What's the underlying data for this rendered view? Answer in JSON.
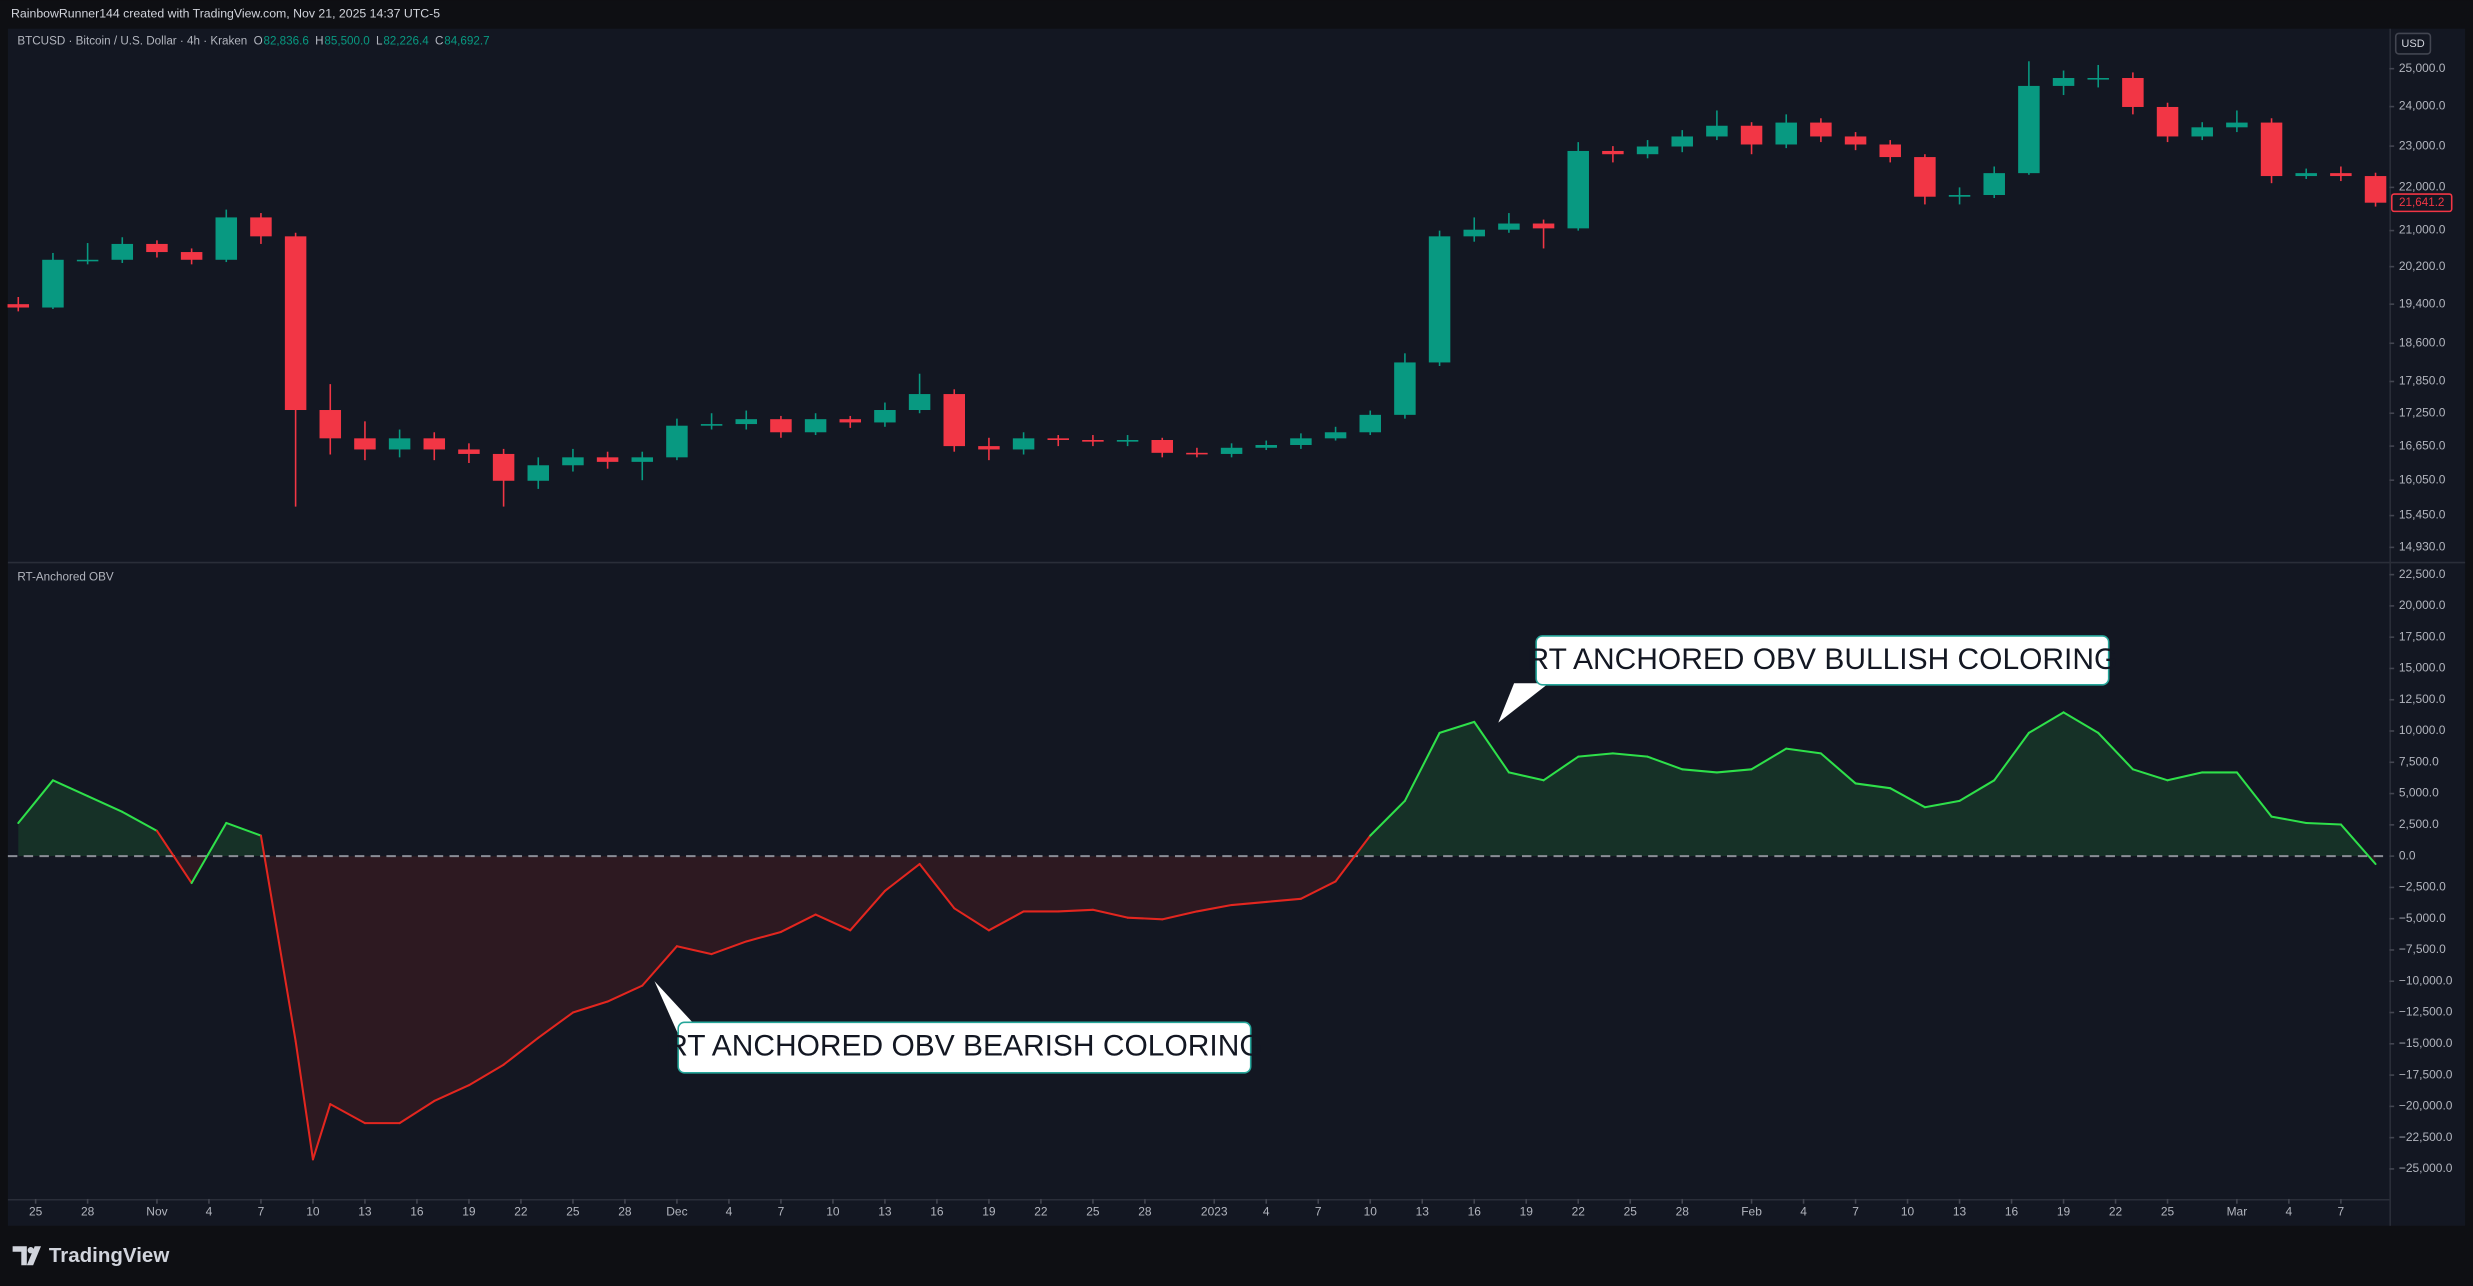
{
  "header": {
    "attribution": "RainbowRunner144 created with TradingView.com, Nov 21, 2025 14:37 UTC-5"
  },
  "currency_button": "USD",
  "footer": {
    "logo": "TradingView"
  },
  "chart_data": [
    {
      "type": "candlestick",
      "title": "BTCUSD · Bitcoin / U.S. Dollar · 4h · Kraken",
      "ohlc_legend": [
        {
          "key": "O",
          "value": "82,836.6"
        },
        {
          "key": "H",
          "value": "85,500.0"
        },
        {
          "key": "L",
          "value": "82,226.4"
        },
        {
          "key": "C",
          "value": "84,692.7"
        }
      ],
      "x": [
        -1,
        1,
        3,
        5,
        7,
        9,
        11,
        13,
        15,
        17,
        19,
        21,
        23,
        25,
        27,
        29,
        31,
        33,
        35,
        37,
        39,
        41,
        43,
        45,
        47,
        49,
        51,
        53,
        55,
        57,
        59,
        61,
        63,
        65,
        67,
        69,
        71,
        73,
        75,
        77,
        79,
        81,
        83,
        85,
        87,
        89,
        91,
        93,
        95,
        97,
        99,
        101,
        103,
        105,
        107,
        109,
        111,
        113,
        115,
        117,
        119,
        121,
        123,
        125,
        127,
        129,
        131,
        133,
        135
      ],
      "ohlc": [
        [
          19400,
          19550,
          19250,
          19330
        ],
        [
          19330,
          20500,
          19300,
          20350
        ],
        [
          20350,
          20720,
          20250,
          20350
        ],
        [
          20350,
          20850,
          20280,
          20700
        ],
        [
          20700,
          20780,
          20400,
          20520
        ],
        [
          20520,
          20600,
          20250,
          20350
        ],
        [
          20350,
          21480,
          20300,
          21300
        ],
        [
          21300,
          21400,
          20700,
          20870
        ],
        [
          20870,
          20950,
          15600,
          17310
        ],
        [
          17310,
          17800,
          16500,
          16790
        ],
        [
          16790,
          17100,
          16400,
          16590
        ],
        [
          16590,
          16950,
          16450,
          16790
        ],
        [
          16790,
          16900,
          16400,
          16590
        ],
        [
          16590,
          16700,
          16350,
          16510
        ],
        [
          16510,
          16600,
          15600,
          16040
        ],
        [
          16040,
          16450,
          15900,
          16310
        ],
        [
          16310,
          16600,
          16200,
          16450
        ],
        [
          16450,
          16550,
          16250,
          16370
        ],
        [
          16370,
          16550,
          16050,
          16450
        ],
        [
          16450,
          17150,
          16400,
          17020
        ],
        [
          17020,
          17250,
          16950,
          17050
        ],
        [
          17050,
          17300,
          16950,
          17140
        ],
        [
          17140,
          17200,
          16800,
          16900
        ],
        [
          16900,
          17250,
          16850,
          17140
        ],
        [
          17140,
          17200,
          16980,
          17080
        ],
        [
          17080,
          17450,
          17000,
          17310
        ],
        [
          17310,
          18000,
          17250,
          17610
        ],
        [
          17610,
          17700,
          16550,
          16650
        ],
        [
          16650,
          16800,
          16400,
          16590
        ],
        [
          16590,
          16900,
          16500,
          16790
        ],
        [
          16790,
          16850,
          16650,
          16760
        ],
        [
          16760,
          16850,
          16650,
          16730
        ],
        [
          16730,
          16850,
          16650,
          16760
        ],
        [
          16760,
          16800,
          16450,
          16530
        ],
        [
          16530,
          16620,
          16450,
          16510
        ],
        [
          16510,
          16700,
          16450,
          16620
        ],
        [
          16620,
          16750,
          16580,
          16670
        ],
        [
          16670,
          16880,
          16600,
          16790
        ],
        [
          16790,
          17000,
          16750,
          16900
        ],
        [
          16900,
          17300,
          16850,
          17220
        ],
        [
          17220,
          18400,
          17150,
          18220
        ],
        [
          18220,
          21000,
          18150,
          20870
        ],
        [
          20870,
          21300,
          20750,
          21020
        ],
        [
          21020,
          21400,
          20950,
          21160
        ],
        [
          21160,
          21250,
          20600,
          21050
        ],
        [
          21050,
          23100,
          21000,
          22880
        ],
        [
          22880,
          23000,
          22600,
          22800
        ],
        [
          22800,
          23150,
          22700,
          22990
        ],
        [
          22990,
          23400,
          22850,
          23240
        ],
        [
          23240,
          23900,
          23150,
          23510
        ],
        [
          23510,
          23600,
          22800,
          23040
        ],
        [
          23040,
          23800,
          22950,
          23590
        ],
        [
          23590,
          23700,
          23100,
          23240
        ],
        [
          23240,
          23350,
          22900,
          23040
        ],
        [
          23040,
          23150,
          22600,
          22730
        ],
        [
          22730,
          22800,
          21600,
          21780
        ],
        [
          21780,
          22000,
          21600,
          21820
        ],
        [
          21820,
          22500,
          21750,
          22340
        ],
        [
          22340,
          25200,
          22300,
          24540
        ],
        [
          24540,
          24950,
          24300,
          24750
        ],
        [
          24750,
          25100,
          24500,
          24750
        ],
        [
          24750,
          24900,
          23800,
          23990
        ],
        [
          23990,
          24100,
          23100,
          23240
        ],
        [
          23240,
          23600,
          23150,
          23470
        ],
        [
          23470,
          23900,
          23350,
          23590
        ],
        [
          23590,
          23700,
          22100,
          22270
        ],
        [
          22270,
          22450,
          22200,
          22340
        ],
        [
          22340,
          22500,
          22150,
          22270
        ],
        [
          22270,
          22350,
          21550,
          21640
        ]
      ],
      "up_color": "#089981",
      "down_color": "#f23645",
      "xlim": [
        -1.6,
        135.8
      ],
      "ylim": [
        14700,
        26100
      ],
      "log_scale": true,
      "grid": false,
      "yticks": [
        {
          "value": 25000,
          "label": "25,000.0"
        },
        {
          "value": 24000,
          "label": "24,000.0"
        },
        {
          "value": 23000,
          "label": "23,000.0"
        },
        {
          "value": 22000,
          "label": "22,000.0"
        },
        {
          "value": 21000,
          "label": "21,000.0"
        },
        {
          "value": 20200,
          "label": "20,200.0"
        },
        {
          "value": 19400,
          "label": "19,400.0"
        },
        {
          "value": 18600,
          "label": "18,600.0"
        },
        {
          "value": 17850,
          "label": "17,850.0"
        },
        {
          "value": 17250,
          "label": "17,250.0"
        },
        {
          "value": 16650,
          "label": "16,650.0"
        },
        {
          "value": 16050,
          "label": "16,050.0"
        },
        {
          "value": 15450,
          "label": "15,450.0"
        },
        {
          "value": 14930,
          "label": "14,930.0"
        }
      ],
      "last_price_label": "21,641.2"
    },
    {
      "type": "line",
      "title": "RT-Anchored OBV",
      "x": [
        -1,
        1,
        3,
        5,
        7,
        9,
        11,
        13,
        15,
        16,
        17,
        19,
        21,
        23,
        25,
        27,
        29,
        31,
        33,
        35,
        37,
        39,
        41,
        43,
        45,
        47,
        49,
        51,
        53,
        55,
        57,
        59,
        61,
        63,
        65,
        67,
        69,
        71,
        73,
        75,
        77,
        79,
        81,
        83,
        85,
        87,
        89,
        91,
        93,
        95,
        97,
        99,
        101,
        103,
        105,
        107,
        109,
        111,
        113,
        115,
        117,
        119,
        121,
        123,
        125,
        127,
        129,
        131,
        133,
        135
      ],
      "values": [
        2650,
        6060,
        4800,
        3540,
        2020,
        -2150,
        2650,
        1640,
        -14770,
        -24240,
        -19820,
        -21340,
        -21340,
        -19570,
        -18310,
        -16670,
        -14520,
        -12500,
        -11620,
        -10350,
        -7200,
        -7830,
        -6820,
        -6060,
        -4670,
        -5930,
        -2780,
        -630,
        -4170,
        -5930,
        -4420,
        -4420,
        -4290,
        -4920,
        -5050,
        -4420,
        -3910,
        -3660,
        -3410,
        -2020,
        1640,
        4420,
        9850,
        10730,
        6690,
        6060,
        7950,
        8210,
        7950,
        6940,
        6690,
        6940,
        8590,
        8210,
        5810,
        5430,
        3910,
        4420,
        6060,
        9850,
        11490,
        9850,
        6940,
        6060,
        6690,
        6690,
        3160,
        2650,
        2530,
        -630
      ],
      "bullish_color": "#2ee04a",
      "bearish_color": "#e3261f",
      "bullish_fill": "rgba(46,224,74,0.13)",
      "bearish_fill": "rgba(227,38,31,0.13)",
      "zero_line": true,
      "grid": false,
      "xlim": [
        -1.6,
        135.8
      ],
      "ylim": [
        -27400,
        23400
      ],
      "yticks": [
        {
          "value": 22500,
          "label": "22,500.0"
        },
        {
          "value": 20000,
          "label": "20,000.0"
        },
        {
          "value": 17500,
          "label": "17,500.0"
        },
        {
          "value": 15000,
          "label": "15,000.0"
        },
        {
          "value": 12500,
          "label": "12,500.0"
        },
        {
          "value": 10000,
          "label": "10,000.0"
        },
        {
          "value": 7500,
          "label": "7,500.0"
        },
        {
          "value": 5000,
          "label": "5,000.0"
        },
        {
          "value": 2500,
          "label": "2,500.0"
        },
        {
          "value": 0,
          "label": "0.0"
        },
        {
          "value": -2500,
          "label": "−2,500.0"
        },
        {
          "value": -5000,
          "label": "−5,000.0"
        },
        {
          "value": -7500,
          "label": "−7,500.0"
        },
        {
          "value": -10000,
          "label": "−10,000.0"
        },
        {
          "value": -12500,
          "label": "−12,500.0"
        },
        {
          "value": -15000,
          "label": "−15,000.0"
        },
        {
          "value": -17500,
          "label": "−17,500.0"
        },
        {
          "value": -20000,
          "label": "−20,000.0"
        },
        {
          "value": -22500,
          "label": "−22,500.0"
        },
        {
          "value": -25000,
          "label": "−25,000.0"
        }
      ],
      "xticks": [
        {
          "value": 0,
          "label": "25"
        },
        {
          "value": 3,
          "label": "28"
        },
        {
          "value": 7,
          "label": "Nov"
        },
        {
          "value": 10,
          "label": "4"
        },
        {
          "value": 13,
          "label": "7"
        },
        {
          "value": 16,
          "label": "10"
        },
        {
          "value": 19,
          "label": "13"
        },
        {
          "value": 22,
          "label": "16"
        },
        {
          "value": 25,
          "label": "19"
        },
        {
          "value": 28,
          "label": "22"
        },
        {
          "value": 31,
          "label": "25"
        },
        {
          "value": 34,
          "label": "28"
        },
        {
          "value": 37,
          "label": "Dec"
        },
        {
          "value": 40,
          "label": "4"
        },
        {
          "value": 43,
          "label": "7"
        },
        {
          "value": 46,
          "label": "10"
        },
        {
          "value": 49,
          "label": "13"
        },
        {
          "value": 52,
          "label": "16"
        },
        {
          "value": 55,
          "label": "19"
        },
        {
          "value": 58,
          "label": "22"
        },
        {
          "value": 61,
          "label": "25"
        },
        {
          "value": 64,
          "label": "28"
        },
        {
          "value": 68,
          "label": "2023"
        },
        {
          "value": 71,
          "label": "4"
        },
        {
          "value": 74,
          "label": "7"
        },
        {
          "value": 77,
          "label": "10"
        },
        {
          "value": 80,
          "label": "13"
        },
        {
          "value": 83,
          "label": "16"
        },
        {
          "value": 86,
          "label": "19"
        },
        {
          "value": 89,
          "label": "22"
        },
        {
          "value": 92,
          "label": "25"
        },
        {
          "value": 95,
          "label": "28"
        },
        {
          "value": 99,
          "label": "Feb"
        },
        {
          "value": 102,
          "label": "4"
        },
        {
          "value": 105,
          "label": "7"
        },
        {
          "value": 108,
          "label": "10"
        },
        {
          "value": 111,
          "label": "13"
        },
        {
          "value": 114,
          "label": "16"
        },
        {
          "value": 117,
          "label": "19"
        },
        {
          "value": 120,
          "label": "22"
        },
        {
          "value": 123,
          "label": "25"
        },
        {
          "value": 127,
          "label": "Mar"
        },
        {
          "value": 130,
          "label": "4"
        },
        {
          "value": 133,
          "label": "7"
        }
      ],
      "annotations": [
        {
          "text": "RT ANCHORED OBV BULLISH COLORING"
        },
        {
          "text": "RT ANCHORED OBV BEARISH COLORING"
        }
      ]
    }
  ]
}
